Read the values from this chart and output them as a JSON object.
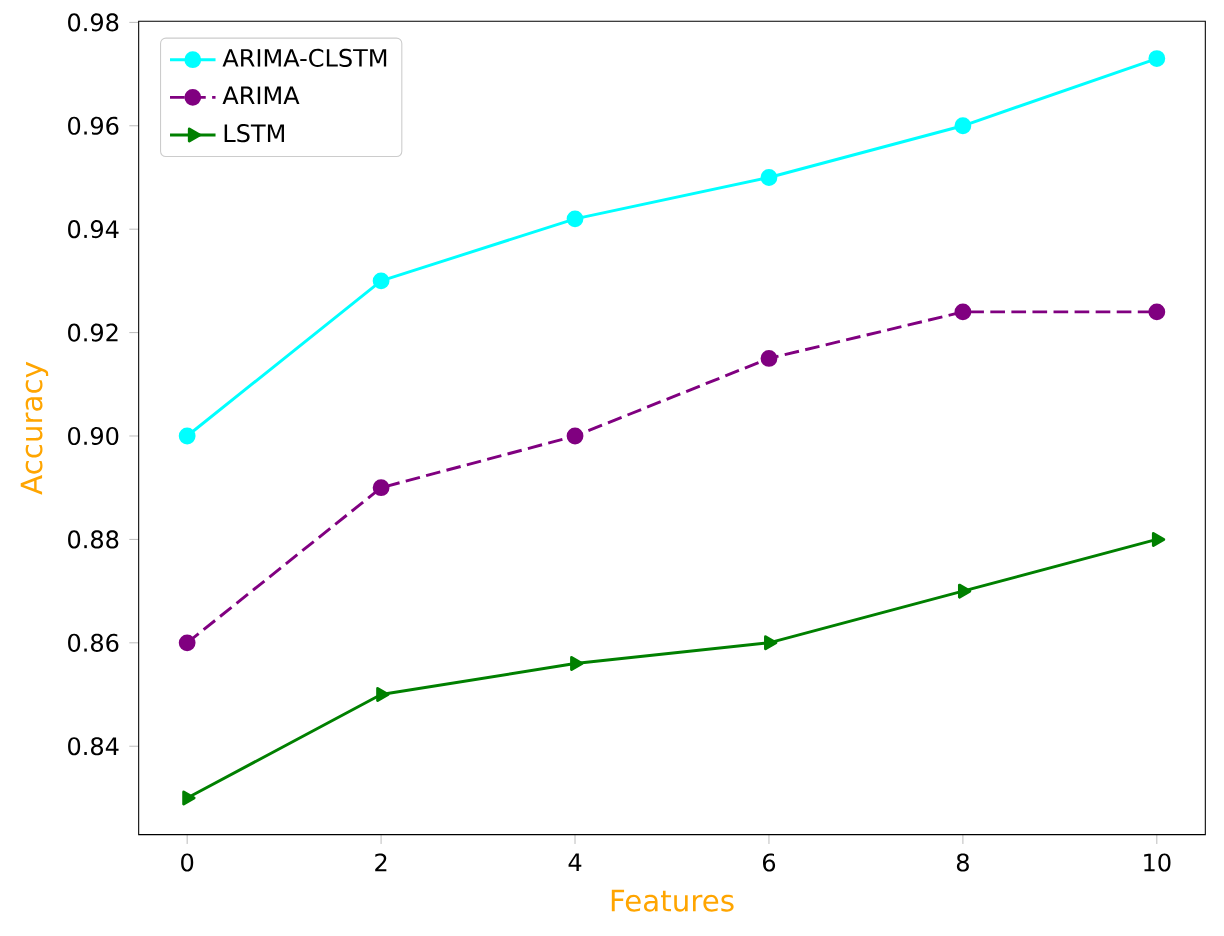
{
  "chart_data": {
    "type": "line",
    "xlabel": "Features",
    "ylabel": "Accuracy",
    "x": [
      0,
      2,
      4,
      6,
      8,
      10
    ],
    "series": [
      {
        "name": "ARIMA-CLSTM",
        "color": "#00ffff",
        "marker": "circle",
        "line_style": "solid",
        "values": [
          0.9,
          0.93,
          0.942,
          0.95,
          0.96,
          0.973
        ]
      },
      {
        "name": "ARIMA",
        "color": "#800080",
        "marker": "circle",
        "line_style": "dashed",
        "values": [
          0.86,
          0.89,
          0.9,
          0.915,
          0.924,
          0.924
        ]
      },
      {
        "name": "LSTM",
        "color": "#008000",
        "marker": "triangle",
        "line_style": "solid",
        "values": [
          0.83,
          0.85,
          0.856,
          0.86,
          0.87,
          0.88
        ]
      }
    ],
    "xlim": [
      -0.5,
      10.5
    ],
    "ylim": [
      0.8229,
      0.9802
    ],
    "xticks": [
      0,
      2,
      4,
      6,
      8,
      10
    ],
    "yticks": [
      0.84,
      0.86,
      0.88,
      {
        "value": 0.9,
        "label": "0.90"
      },
      0.92,
      0.94,
      0.96,
      0.98
    ],
    "legend": "top left"
  }
}
